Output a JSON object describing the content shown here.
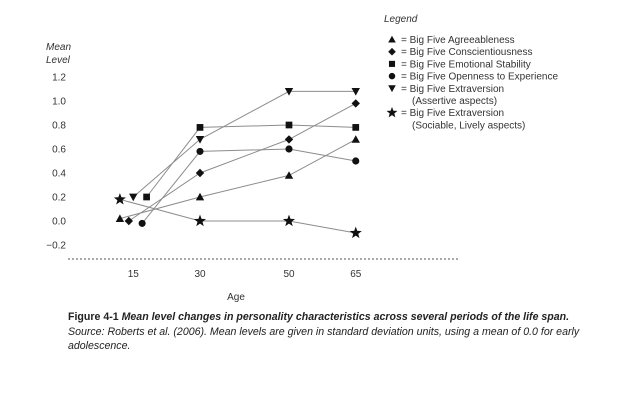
{
  "chart_data": {
    "type": "line",
    "xlabel": "Age",
    "ylabel_line1": "Mean",
    "ylabel_line2": "Level",
    "x_ticks": [
      "15",
      "30",
      "50",
      "65"
    ],
    "y_ticks": [
      "1.2",
      "1.0",
      "0.8",
      "0.6",
      "0.4",
      "0.2",
      "0.0",
      "−0.2"
    ],
    "ylim": [
      -0.2,
      1.2
    ],
    "grid": false,
    "legend_title": "Legend",
    "legend_position": "top-right",
    "series": [
      {
        "name": "= Big Five Agreeableness",
        "marker": "triangle-up",
        "points": [
          {
            "x": "12",
            "y": 0.02
          },
          {
            "x": "30",
            "y": 0.2
          },
          {
            "x": "50",
            "y": 0.38
          },
          {
            "x": "65",
            "y": 0.68
          }
        ]
      },
      {
        "name": "= Big Five Conscientiousness",
        "marker": "diamond",
        "points": [
          {
            "x": "14",
            "y": 0.0
          },
          {
            "x": "30",
            "y": 0.4
          },
          {
            "x": "50",
            "y": 0.68
          },
          {
            "x": "65",
            "y": 0.98
          }
        ]
      },
      {
        "name": "= Big Five Emotional Stability",
        "marker": "square",
        "points": [
          {
            "x": "18",
            "y": 0.2
          },
          {
            "x": "30",
            "y": 0.78
          },
          {
            "x": "50",
            "y": 0.8
          },
          {
            "x": "65",
            "y": 0.78
          }
        ]
      },
      {
        "name": "= Big Five Openness to Experience",
        "marker": "circle",
        "points": [
          {
            "x": "17",
            "y": -0.02
          },
          {
            "x": "30",
            "y": 0.58
          },
          {
            "x": "50",
            "y": 0.6
          },
          {
            "x": "65",
            "y": 0.5
          }
        ]
      },
      {
        "name": "= Big Five Extraversion",
        "name_line2": "(Assertive aspects)",
        "marker": "triangle-down",
        "points": [
          {
            "x": "15",
            "y": 0.2
          },
          {
            "x": "30",
            "y": 0.68
          },
          {
            "x": "50",
            "y": 1.08
          },
          {
            "x": "65",
            "y": 1.08
          }
        ]
      },
      {
        "name": "= Big Five Extraversion",
        "name_line2": "(Sociable, Lively aspects)",
        "marker": "star",
        "points": [
          {
            "x": "12",
            "y": 0.18
          },
          {
            "x": "30",
            "y": 0.0
          },
          {
            "x": "50",
            "y": 0.0
          },
          {
            "x": "65",
            "y": -0.1
          }
        ]
      }
    ],
    "colors": {
      "marker": "#111111",
      "line": "#8c8c8c",
      "axis": "#555555"
    }
  },
  "caption": {
    "label": "Figure 4-1",
    "title": "Mean level changes in personality characteristics across several periods of the life span.",
    "source": "Source: Roberts et al. (2006). Mean levels are given in standard deviation units, using a mean of 0.0 for early adolescence."
  }
}
